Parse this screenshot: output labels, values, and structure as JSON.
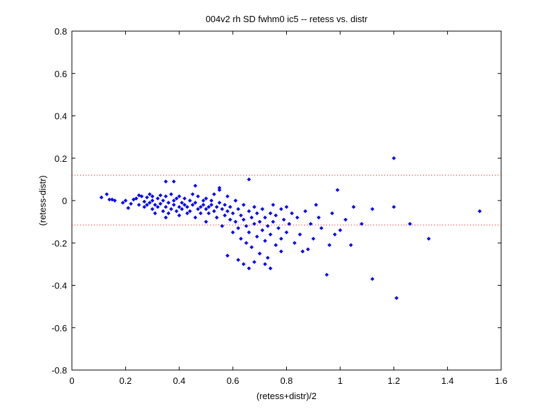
{
  "chart_data": {
    "type": "scatter",
    "title": "004v2 rh SD fwhm0 ic5 -- retess vs. distr",
    "xlabel": "(retess+distr)/2",
    "ylabel": "(retess-distr)",
    "xlim": [
      0,
      1.6
    ],
    "ylim": [
      -0.8,
      0.8
    ],
    "xticks": [
      "0",
      "0.2",
      "0.4",
      "0.6",
      "0.8",
      "1",
      "1.2",
      "1.4",
      "1.6"
    ],
    "yticks": [
      "-0.8",
      "-0.6",
      "-0.4",
      "-0.2",
      "0",
      "0.2",
      "0.4",
      "0.6",
      "0.8"
    ],
    "grid": false,
    "reference_lines": [
      0.12,
      -0.115
    ],
    "colors": {
      "points": "#0000ff",
      "reference_lines": "#ff0000",
      "axes": "#000000"
    },
    "series": [
      {
        "marker": "diamond",
        "points": [
          [
            0.11,
            0.015
          ],
          [
            0.13,
            0.03
          ],
          [
            0.14,
            0.005
          ],
          [
            0.15,
            0.005
          ],
          [
            0.16,
            0.0
          ],
          [
            0.19,
            -0.01
          ],
          [
            0.2,
            0.0
          ],
          [
            0.21,
            -0.035
          ],
          [
            0.22,
            -0.015
          ],
          [
            0.23,
            0.005
          ],
          [
            0.24,
            0.01
          ],
          [
            0.25,
            -0.02
          ],
          [
            0.25,
            0.025
          ],
          [
            0.26,
            0.02
          ],
          [
            0.27,
            -0.005
          ],
          [
            0.27,
            -0.03
          ],
          [
            0.28,
            0.015
          ],
          [
            0.28,
            -0.02
          ],
          [
            0.29,
            0.03
          ],
          [
            0.29,
            -0.01
          ],
          [
            0.3,
            0.0
          ],
          [
            0.3,
            -0.04
          ],
          [
            0.3,
            0.02
          ],
          [
            0.31,
            -0.02
          ],
          [
            0.31,
            -0.06
          ],
          [
            0.32,
            0.01
          ],
          [
            0.32,
            -0.03
          ],
          [
            0.33,
            -0.015
          ],
          [
            0.33,
            0.025
          ],
          [
            0.34,
            -0.05
          ],
          [
            0.34,
            0.0
          ],
          [
            0.35,
            -0.08
          ],
          [
            0.35,
            -0.03
          ],
          [
            0.35,
            0.02
          ],
          [
            0.36,
            -0.06
          ],
          [
            0.36,
            -0.01
          ],
          [
            0.37,
            0.03
          ],
          [
            0.37,
            -0.04
          ],
          [
            0.38,
            -0.02
          ],
          [
            0.38,
            0.0
          ],
          [
            0.39,
            -0.05
          ],
          [
            0.39,
            0.01
          ],
          [
            0.4,
            -0.03
          ],
          [
            0.4,
            -0.07
          ],
          [
            0.4,
            0.02
          ],
          [
            0.41,
            -0.01
          ],
          [
            0.41,
            -0.04
          ],
          [
            0.42,
            -0.02
          ],
          [
            0.42,
            0.01
          ],
          [
            0.43,
            -0.06
          ],
          [
            0.43,
            -0.03
          ],
          [
            0.44,
            0.0
          ],
          [
            0.44,
            -0.05
          ],
          [
            0.45,
            -0.02
          ],
          [
            0.45,
            0.03
          ],
          [
            0.46,
            -0.08
          ],
          [
            0.46,
            -0.01
          ],
          [
            0.47,
            -0.04
          ],
          [
            0.47,
            0.02
          ],
          [
            0.48,
            -0.03
          ],
          [
            0.48,
            -0.06
          ],
          [
            0.49,
            0.0
          ],
          [
            0.49,
            -0.02
          ],
          [
            0.5,
            -0.04
          ],
          [
            0.5,
            0.01
          ],
          [
            0.5,
            -0.1
          ],
          [
            0.51,
            -0.03
          ],
          [
            0.51,
            -0.06
          ],
          [
            0.52,
            0.0
          ],
          [
            0.52,
            -0.02
          ],
          [
            0.53,
            -0.05
          ],
          [
            0.53,
            0.03
          ],
          [
            0.54,
            -0.08
          ],
          [
            0.54,
            -0.03
          ],
          [
            0.55,
            -0.01
          ],
          [
            0.55,
            0.06
          ],
          [
            0.56,
            -0.04
          ],
          [
            0.56,
            -0.12
          ],
          [
            0.57,
            -0.02
          ],
          [
            0.57,
            -0.07
          ],
          [
            0.58,
            0.02
          ],
          [
            0.58,
            -0.05
          ],
          [
            0.59,
            -0.09
          ],
          [
            0.59,
            -0.03
          ],
          [
            0.6,
            -0.15
          ],
          [
            0.6,
            -0.06
          ],
          [
            0.61,
            0.0
          ],
          [
            0.61,
            -0.1
          ],
          [
            0.62,
            -0.04
          ],
          [
            0.62,
            -0.13
          ],
          [
            0.63,
            -0.07
          ],
          [
            0.63,
            -0.18
          ],
          [
            0.64,
            -0.02
          ],
          [
            0.64,
            -0.09
          ],
          [
            0.65,
            -0.12
          ],
          [
            0.65,
            -0.2
          ],
          [
            0.66,
            -0.05
          ],
          [
            0.66,
            -0.15
          ],
          [
            0.67,
            -0.08
          ],
          [
            0.67,
            -0.22
          ],
          [
            0.68,
            -0.03
          ],
          [
            0.68,
            -0.11
          ],
          [
            0.69,
            -0.17
          ],
          [
            0.69,
            -0.06
          ],
          [
            0.7,
            -0.25
          ],
          [
            0.7,
            -0.1
          ],
          [
            0.71,
            -0.14
          ],
          [
            0.71,
            -0.04
          ],
          [
            0.72,
            -0.19
          ],
          [
            0.72,
            -0.08
          ],
          [
            0.73,
            -0.12
          ],
          [
            0.73,
            -0.27
          ],
          [
            0.74,
            -0.06
          ],
          [
            0.74,
            -0.16
          ],
          [
            0.75,
            -0.1
          ],
          [
            0.75,
            -0.02
          ],
          [
            0.76,
            -0.21
          ],
          [
            0.76,
            -0.07
          ],
          [
            0.77,
            -0.13
          ],
          [
            0.78,
            -0.04
          ],
          [
            0.78,
            -0.18
          ],
          [
            0.79,
            -0.09
          ],
          [
            0.8,
            -0.15
          ],
          [
            0.8,
            -0.03
          ],
          [
            0.81,
            -0.11
          ],
          [
            0.82,
            -0.06
          ],
          [
            0.83,
            -0.2
          ],
          [
            0.84,
            -0.08
          ],
          [
            0.85,
            -0.16
          ],
          [
            0.86,
            -0.24
          ],
          [
            0.87,
            -0.05
          ],
          [
            0.88,
            -0.23
          ],
          [
            0.89,
            -0.11
          ],
          [
            0.9,
            -0.18
          ],
          [
            0.91,
            -0.02
          ],
          [
            0.92,
            -0.08
          ],
          [
            0.93,
            -0.13
          ],
          [
            0.95,
            -0.35
          ],
          [
            0.96,
            -0.21
          ],
          [
            0.97,
            -0.06
          ],
          [
            0.98,
            -0.16
          ],
          [
            0.99,
            0.05
          ],
          [
            1.0,
            -0.14
          ],
          [
            1.02,
            -0.09
          ],
          [
            1.04,
            -0.21
          ],
          [
            1.05,
            -0.03
          ],
          [
            1.08,
            -0.11
          ],
          [
            1.12,
            -0.04
          ],
          [
            1.12,
            -0.37
          ],
          [
            1.2,
            0.2
          ],
          [
            1.2,
            -0.03
          ],
          [
            1.21,
            -0.46
          ],
          [
            1.26,
            -0.11
          ],
          [
            1.33,
            -0.18
          ],
          [
            1.52,
            -0.05
          ],
          [
            0.35,
            0.09
          ],
          [
            0.38,
            0.09
          ],
          [
            0.46,
            0.07
          ],
          [
            0.55,
            0.05
          ],
          [
            0.66,
            0.1
          ],
          [
            0.62,
            -0.28
          ],
          [
            0.64,
            -0.3
          ],
          [
            0.66,
            -0.32
          ],
          [
            0.68,
            -0.29
          ],
          [
            0.72,
            -0.3
          ],
          [
            0.74,
            -0.32
          ],
          [
            0.58,
            -0.26
          ],
          [
            0.78,
            -0.24
          ]
        ]
      }
    ]
  }
}
